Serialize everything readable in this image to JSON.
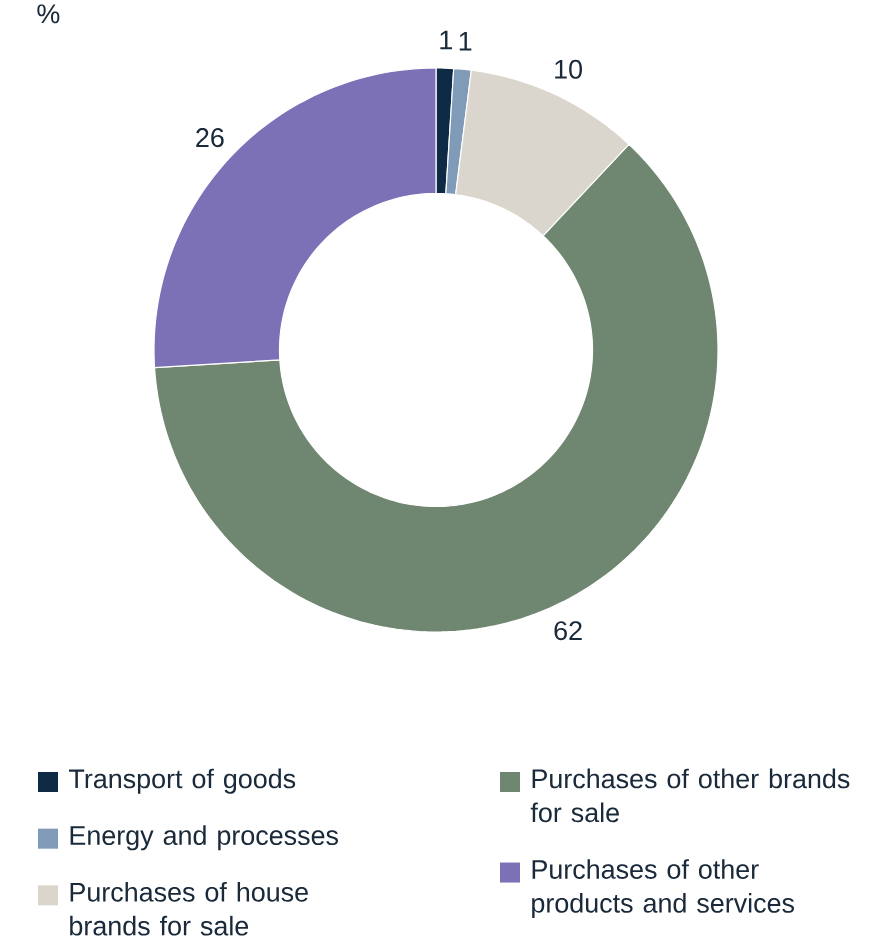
{
  "chart_data": {
    "type": "donut",
    "title": "%",
    "categories": [
      "Transport of goods",
      "Energy and processes",
      "Purchases of house brands for sale",
      "Purchases of other brands for sale",
      "Purchases of other products and services"
    ],
    "values": [
      1,
      1,
      10,
      62,
      26
    ],
    "colors": [
      "#0f2a44",
      "#7f9bb8",
      "#dad5cd",
      "#6f8771",
      "#7c70b6"
    ],
    "data_labels": true,
    "legend": "bottom"
  }
}
